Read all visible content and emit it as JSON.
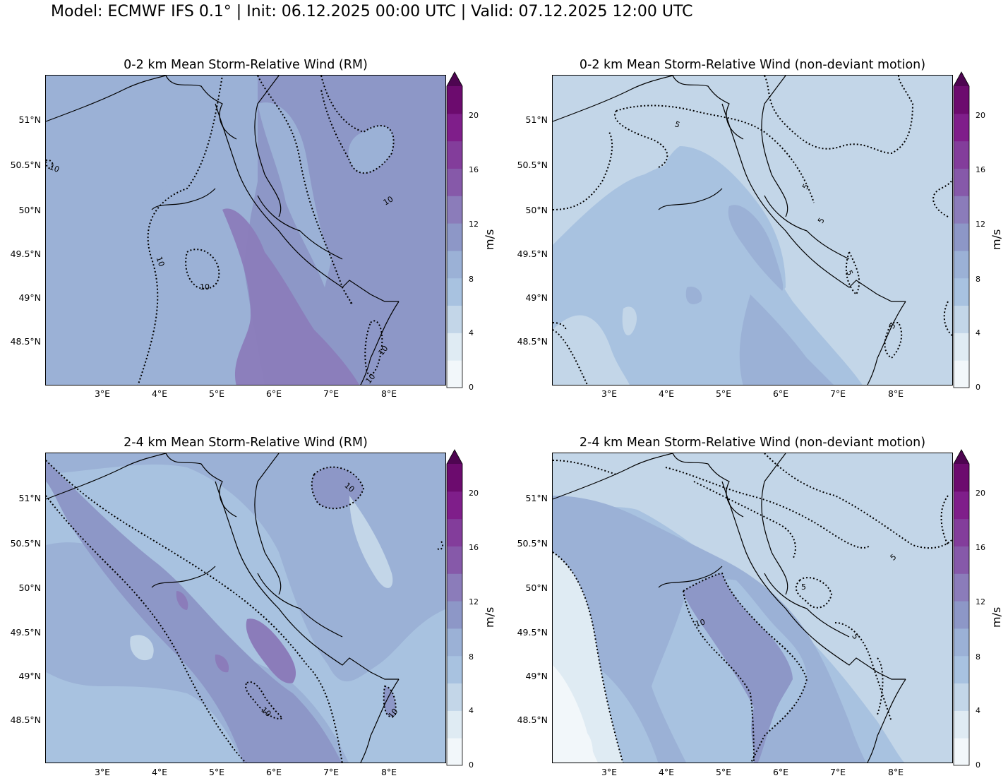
{
  "suptitle": "Model: ECMWF IFS 0.1° | Init: 06.12.2025 00:00 UTC | Valid: 07.12.2025 12:00 UTC",
  "colorbar": {
    "unit_label": "m/s",
    "ticks": [
      "0",
      "4",
      "8",
      "12",
      "16",
      "20"
    ],
    "levels": [
      0,
      2,
      4,
      6,
      8,
      10,
      12,
      14,
      16,
      18,
      20,
      22
    ],
    "colors": [
      "#f2f7fa",
      "#dfebf3",
      "#c3d6e8",
      "#a8c2e0",
      "#9bb1d6",
      "#8d97c7",
      "#8b7cba",
      "#8659a9",
      "#833d9b",
      "#7f1e8a",
      "#6c0b6e",
      "#4e0551"
    ],
    "extend": "max"
  },
  "axes": {
    "lat_labels": [
      "51°N",
      "50.5°N",
      "50°N",
      "49.5°N",
      "49°N",
      "48.5°N"
    ],
    "lon_labels": [
      "3°E",
      "4°E",
      "5°E",
      "6°E",
      "7°E",
      "8°E"
    ]
  },
  "panels": [
    {
      "title": "0-2 km Mean Storm-Relative Wind (RM)",
      "contour_labels": [
        "10",
        "10",
        "10",
        "10",
        "10",
        "10"
      ]
    },
    {
      "title": "0-2 km Mean Storm-Relative Wind (non-deviant motion)",
      "contour_labels": [
        "5",
        "5",
        "5",
        "5",
        "5"
      ]
    },
    {
      "title": "2-4 km Mean Storm-Relative Wind (RM)",
      "contour_labels": [
        "10",
        "10",
        "10"
      ]
    },
    {
      "title": "2-4 km Mean Storm-Relative Wind (non-deviant motion)",
      "contour_labels": [
        "5",
        "5",
        "5",
        "10"
      ]
    }
  ]
}
